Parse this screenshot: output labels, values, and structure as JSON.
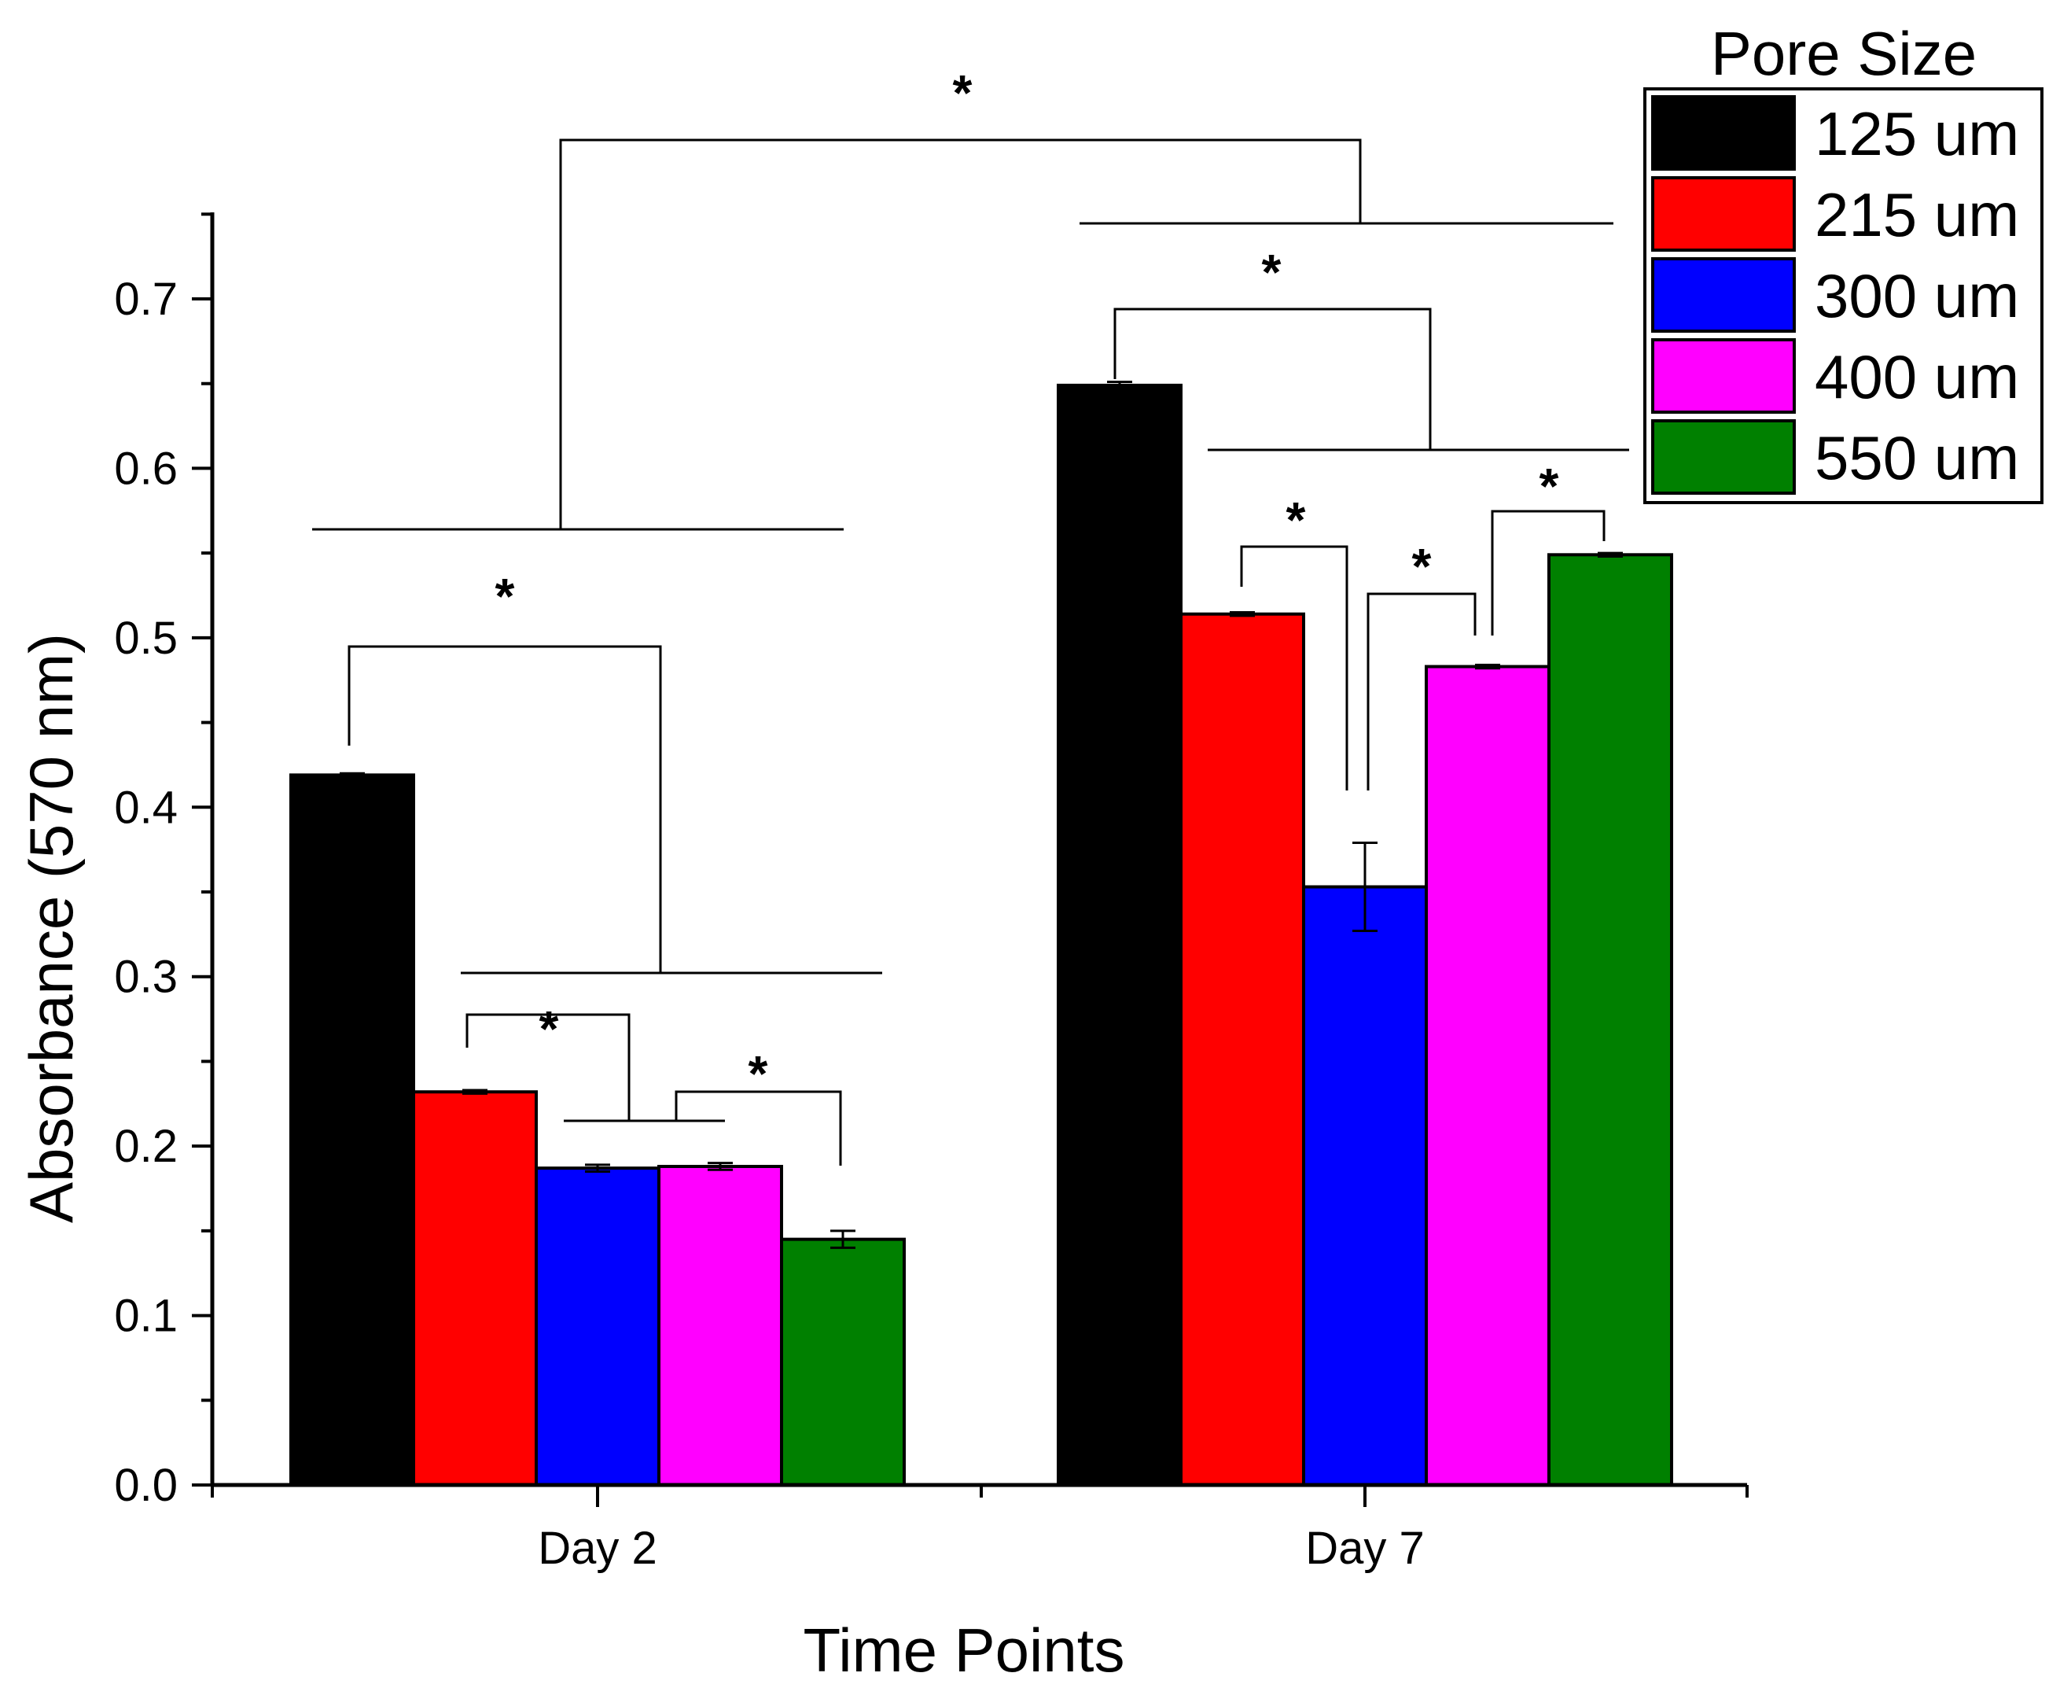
{
  "chart_data": {
    "type": "bar",
    "title": "",
    "xlabel": "Time Points",
    "ylabel": "Absorbance (570 nm)",
    "ylim": [
      0,
      0.75
    ],
    "yticks": [
      0.0,
      0.1,
      0.2,
      0.3,
      0.4,
      0.5,
      0.6,
      0.7
    ],
    "ytick_labels": [
      "0.0",
      "0.1",
      "0.2",
      "0.3",
      "0.4",
      "0.5",
      "0.6",
      "0.7"
    ],
    "categories": [
      "Day 2",
      "Day 7"
    ],
    "legend": {
      "title": "Pore Size",
      "placement": "top-right"
    },
    "series": [
      {
        "name": "125 um",
        "color": "#000000",
        "values": [
          0.419,
          0.649
        ],
        "errors": [
          0.001,
          0.002
        ]
      },
      {
        "name": "215 um",
        "color": "#ff0000",
        "values": [
          0.232,
          0.514
        ],
        "errors": [
          0.001,
          0.001
        ]
      },
      {
        "name": "300 um",
        "color": "#0000ff",
        "values": [
          0.187,
          0.353
        ],
        "errors": [
          0.002,
          0.026
        ]
      },
      {
        "name": "400 um",
        "color": "#ff00ff",
        "values": [
          0.188,
          0.483
        ],
        "errors": [
          0.002,
          0.001
        ]
      },
      {
        "name": "550 um",
        "color": "#008000",
        "values": [
          0.145,
          0.549
        ],
        "errors": [
          0.005,
          0.001
        ]
      }
    ],
    "significance_marker": "*"
  }
}
